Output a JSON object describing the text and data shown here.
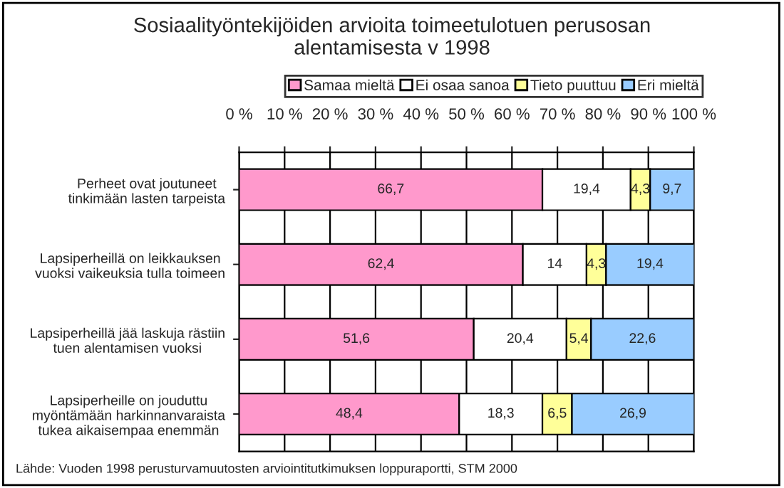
{
  "chart_data": {
    "type": "bar",
    "orientation": "horizontal",
    "stacked": true,
    "title": "Sosiaalityöntekijöiden arvioita toimeetulotuen perusosan\nalentamisesta v 1998",
    "categories": [
      "Perheet ovat joutuneet\ntinkimään lasten tarpeista",
      "Lapsiperheillä on leikkauksen\nvuoksi vaikeuksia tulla toimeen",
      "Lapsiperheillä jää laskuja rästiin\ntuen alentamisen vuoksi",
      "Lapsiperheille on jouduttu\nmyöntämään harkinnanvaraista\ntukea aikaisempaa enemmän"
    ],
    "series": [
      {
        "name": "Samaa mieltä",
        "color": "#ff99cc",
        "values": [
          66.7,
          62.4,
          51.6,
          48.4
        ],
        "value_labels": [
          "66,7",
          "62,4",
          "51,6",
          "48,4"
        ]
      },
      {
        "name": "Ei osaa sanoa",
        "color": "#ffffff",
        "values": [
          19.4,
          14,
          20.4,
          18.3
        ],
        "value_labels": [
          "19,4",
          "14",
          "20,4",
          "18,3"
        ]
      },
      {
        "name": "Tieto puuttuu",
        "color": "#ffff99",
        "values": [
          4.3,
          4.3,
          5.4,
          6.5
        ],
        "value_labels": [
          "4,3",
          "4,3",
          "5,4",
          "6,5"
        ]
      },
      {
        "name": "Eri mieltä",
        "color": "#99ccff",
        "values": [
          9.7,
          19.4,
          22.6,
          26.9
        ],
        "value_labels": [
          "9,7",
          "19,4",
          "22,6",
          "26,9"
        ]
      }
    ],
    "xlim": [
      0,
      100
    ],
    "xticks": [
      {
        "value": 0,
        "label": "0 %"
      },
      {
        "value": 10,
        "label": "10 %"
      },
      {
        "value": 20,
        "label": "20 %"
      },
      {
        "value": 30,
        "label": "30 %"
      },
      {
        "value": 40,
        "label": "40 %"
      },
      {
        "value": 50,
        "label": "50 %"
      },
      {
        "value": 60,
        "label": "60 %"
      },
      {
        "value": 70,
        "label": "70 %"
      },
      {
        "value": 80,
        "label": "80 %"
      },
      {
        "value": 90,
        "label": "90 %"
      },
      {
        "value": 100,
        "label": "100 %"
      }
    ],
    "grid": "x",
    "legend": "top",
    "annotations": [
      "Lähde: Vuoden 1998 perusturvamuutosten arviointitutkimuksen loppuraportti, STM 2000"
    ]
  }
}
